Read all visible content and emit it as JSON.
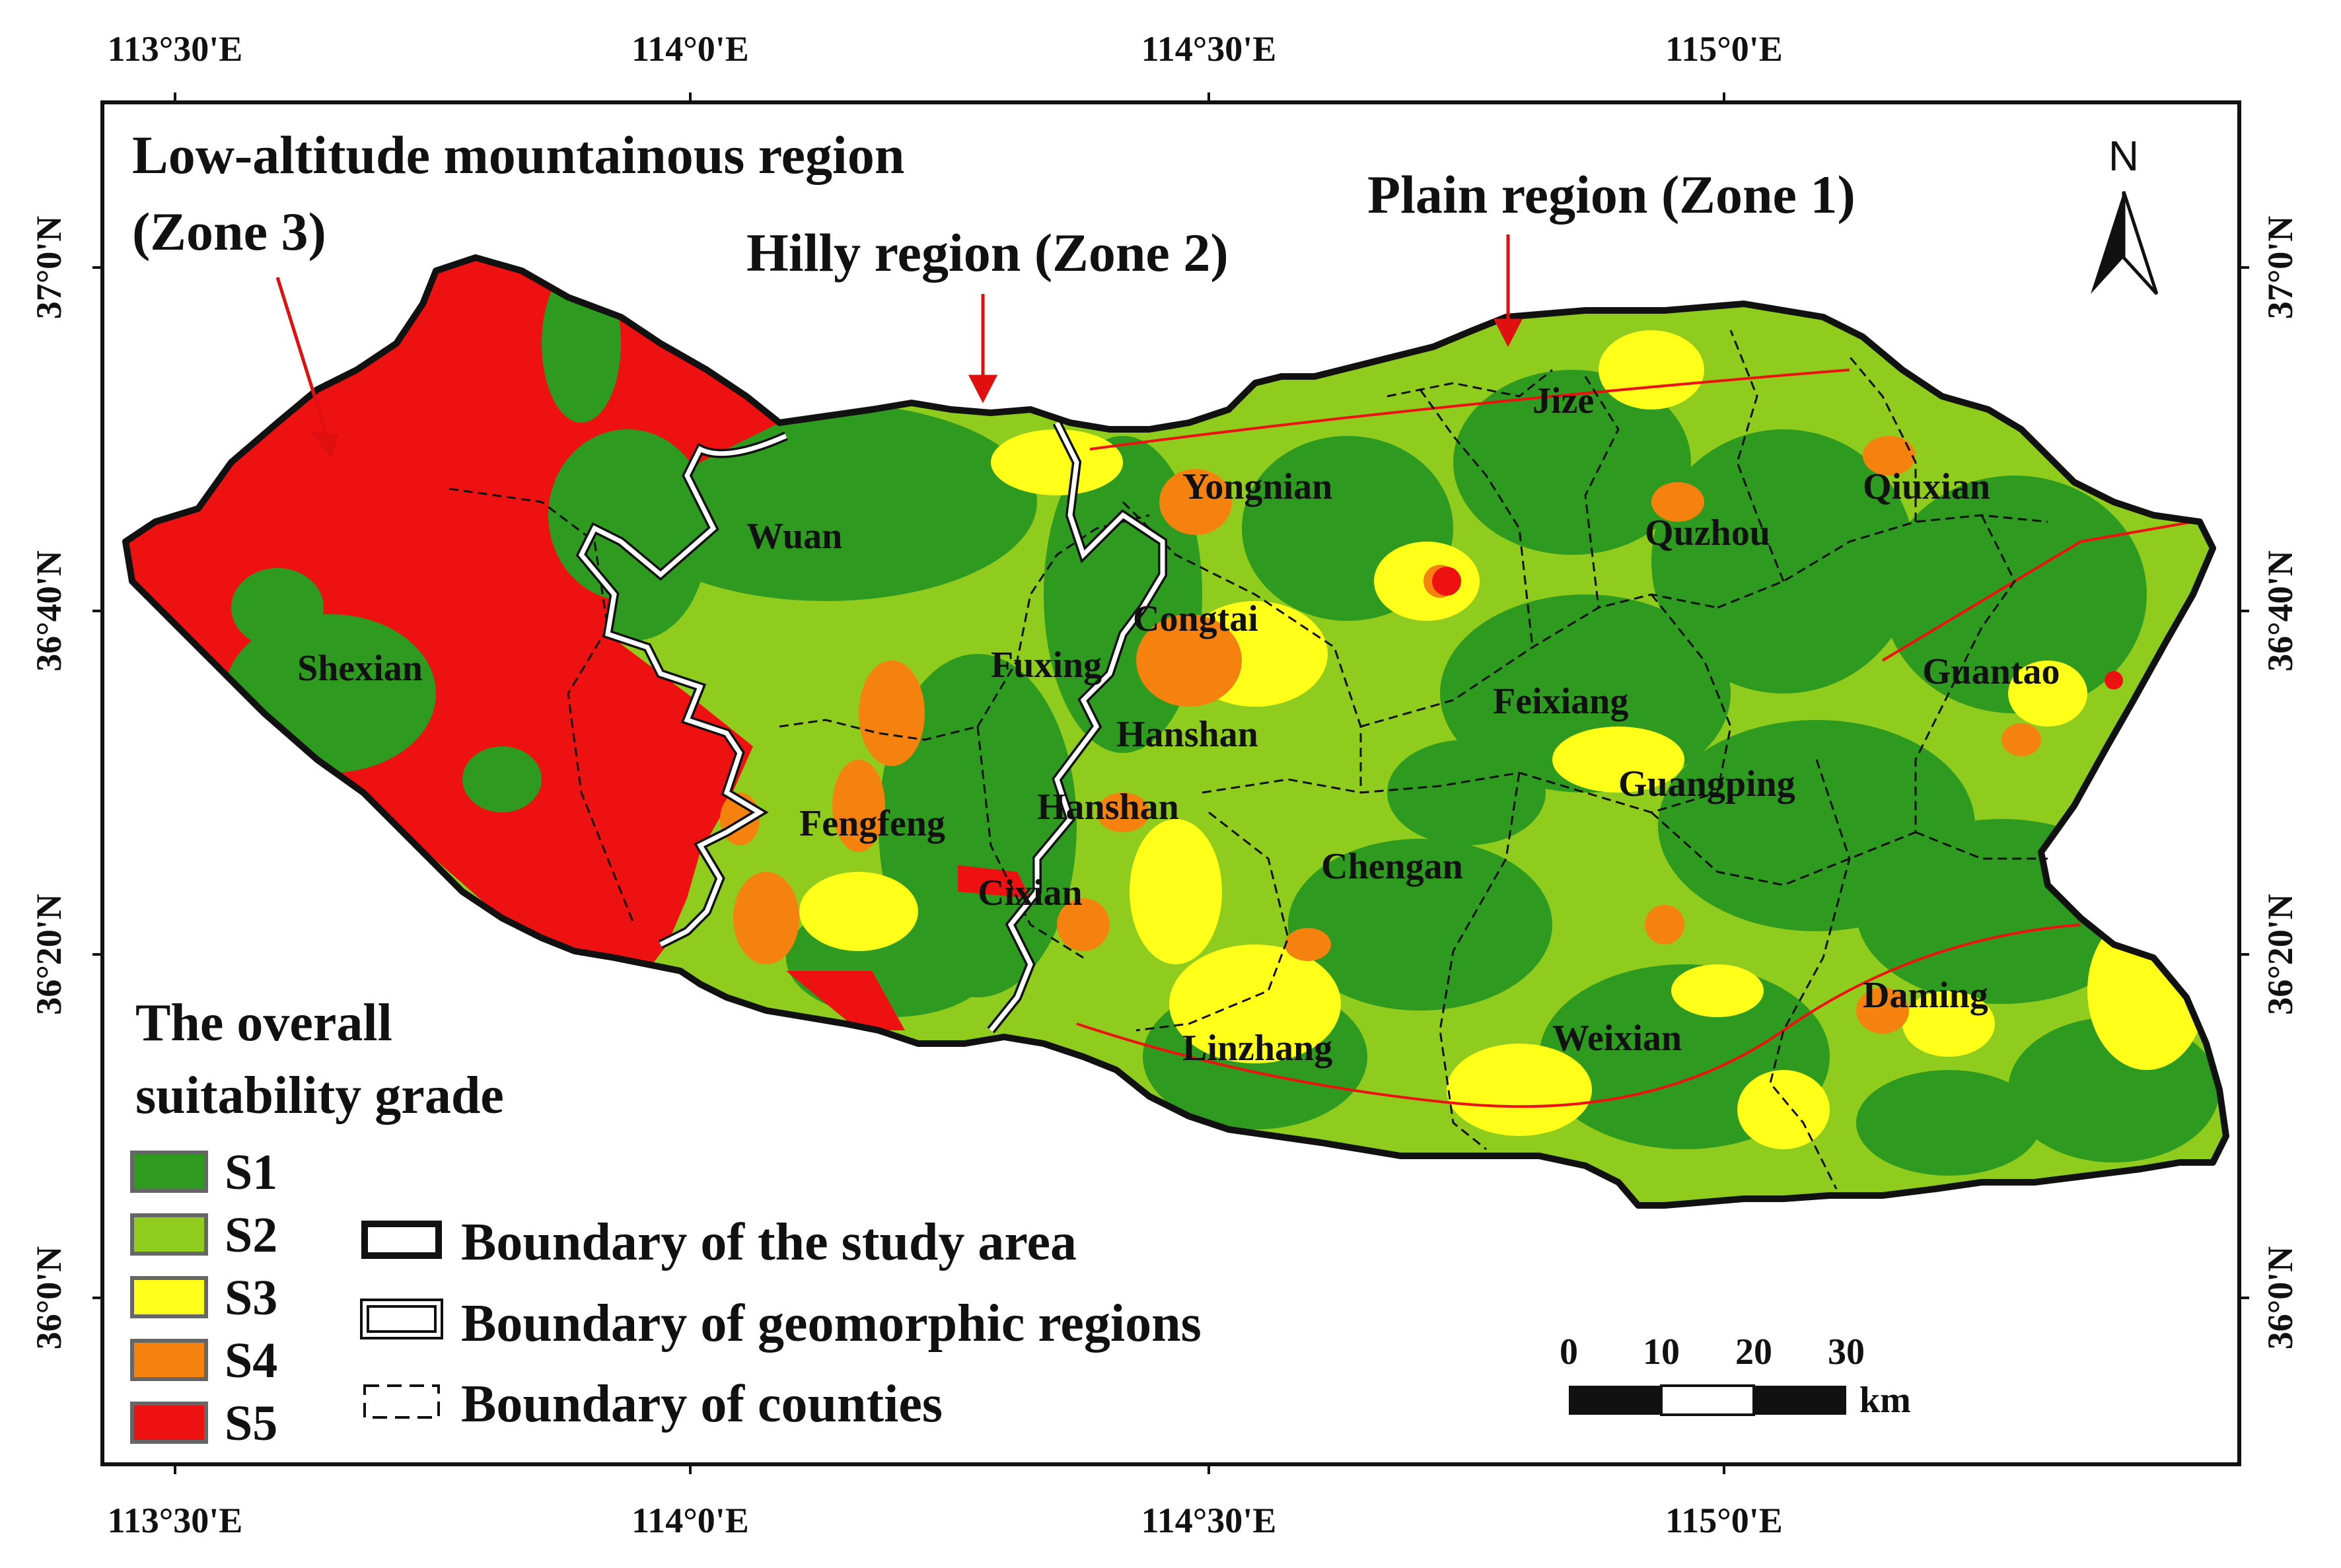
{
  "coordinates": {
    "top_bottom": [
      "113°30'E",
      "114°0'E",
      "114°30'E",
      "115°0'E"
    ],
    "left_right": [
      "37°0'N",
      "36°40'N",
      "36°20'N",
      "36°0'N"
    ]
  },
  "zones": {
    "zone3_line1": "Low-altitude mountainous region",
    "zone3_line2": "(Zone 3)",
    "zone2": "Hilly region (Zone 2)",
    "zone1": "Plain  region (Zone 1)"
  },
  "north_label": "N",
  "counties": {
    "shexian": "Shexian",
    "wuan": "Wuan",
    "fengfeng": "Fengfeng",
    "fuxing": "Fuxing",
    "congtai": "Congtai",
    "hanshan1": "Hanshan",
    "hanshan2": "Hanshan",
    "cixian": "Cixian",
    "yongnian": "Yongnian",
    "jize": "Jize",
    "quzhou": "Quzhou",
    "qiuxian": "Qiuxian",
    "feixiang": "Feixiang",
    "guantao": "Guantao",
    "guangping": "Guangping",
    "chengan": "Chengan",
    "linzhang": "Linzhang",
    "weixian": "Weixian",
    "daming": "Daming"
  },
  "legend": {
    "title_line1": "The overall",
    "title_line2": "suitability grade",
    "grades": [
      {
        "label": "S1",
        "color": "#2e9a1f"
      },
      {
        "label": "S2",
        "color": "#8fcc1e"
      },
      {
        "label": "S3",
        "color": "#ffff1a"
      },
      {
        "label": "S4",
        "color": "#f5820f"
      },
      {
        "label": "S5",
        "color": "#ee1111"
      }
    ],
    "boundaries": {
      "study_area": "Boundary of the study area",
      "geomorphic": "Boundary of geomorphic regions",
      "counties": "Boundary of counties"
    }
  },
  "scale_bar": {
    "ticks": [
      "0",
      "10",
      "20",
      "30"
    ],
    "unit": "km"
  },
  "colors": {
    "s1": "#2e9a1f",
    "s2": "#8fcc1e",
    "s3": "#ffff1a",
    "s4": "#f5820f",
    "s5": "#ee1111",
    "arrow": "#e01010"
  }
}
